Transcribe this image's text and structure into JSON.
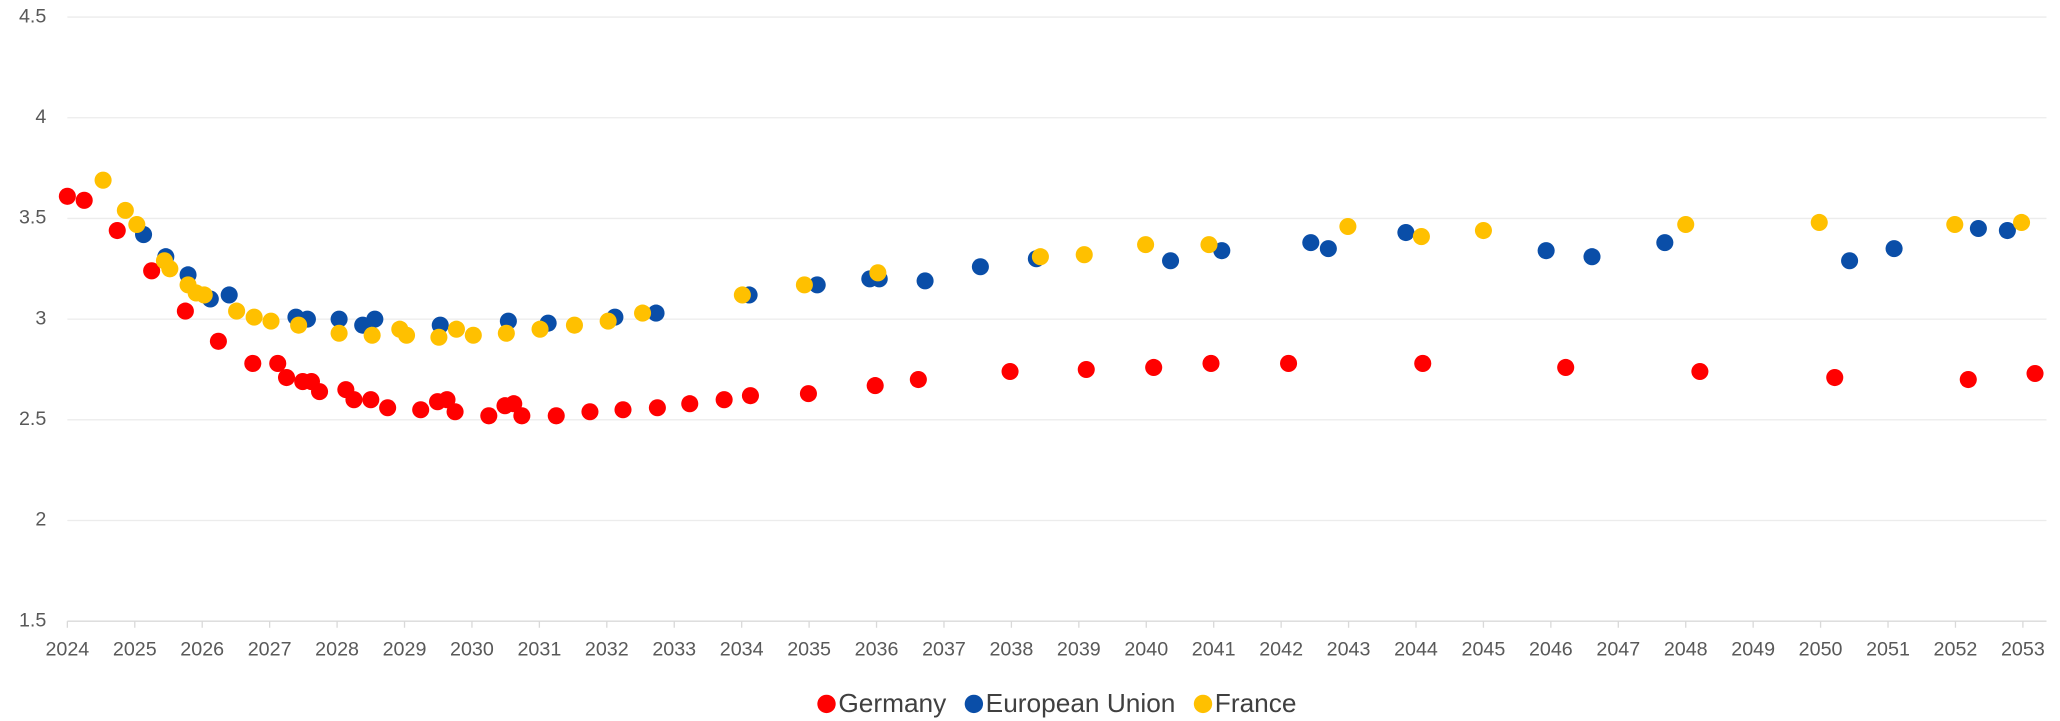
{
  "chart_data": {
    "type": "scatter",
    "xlim": [
      2024,
      2053.35
    ],
    "xticks": [
      2024,
      2025,
      2026,
      2027,
      2028,
      2029,
      2030,
      2031,
      2032,
      2033,
      2034,
      2035,
      2036,
      2037,
      2038,
      2039,
      2040,
      2041,
      2042,
      2043,
      2044,
      2045,
      2046,
      2047,
      2048,
      2049,
      2050,
      2051,
      2052,
      2053
    ],
    "ylim": [
      1.5,
      4.5
    ],
    "yticks": [
      1.5,
      2,
      2.5,
      3,
      3.5,
      4,
      4.5
    ],
    "grid": true,
    "legend": "bottom",
    "series": [
      {
        "name": "Germany",
        "color": "#ff0000",
        "x": [
          2024.0,
          2024.25,
          2024.74,
          2025.25,
          2025.75,
          2026.24,
          2026.75,
          2027.12,
          2027.25,
          2027.49,
          2027.62,
          2027.74,
          2028.13,
          2028.25,
          2028.5,
          2028.75,
          2029.24,
          2029.49,
          2029.63,
          2029.75,
          2030.25,
          2030.49,
          2030.62,
          2030.74,
          2031.25,
          2031.75,
          2032.24,
          2032.75,
          2033.23,
          2033.74,
          2034.13,
          2034.99,
          2035.98,
          2036.62,
          2037.98,
          2039.11,
          2040.11,
          2040.96,
          2042.11,
          2044.1,
          2046.22,
          2048.21,
          2050.21,
          2052.19,
          2053.18
        ],
        "values": [
          3.61,
          3.59,
          3.44,
          3.24,
          3.04,
          2.89,
          2.78,
          2.78,
          2.71,
          2.69,
          2.69,
          2.64,
          2.65,
          2.6,
          2.6,
          2.56,
          2.55,
          2.59,
          2.6,
          2.54,
          2.52,
          2.57,
          2.58,
          2.52,
          2.52,
          2.54,
          2.55,
          2.56,
          2.58,
          2.6,
          2.62,
          2.63,
          2.67,
          2.7,
          2.74,
          2.75,
          2.76,
          2.78,
          2.78,
          2.78,
          2.76,
          2.74,
          2.71,
          2.7,
          2.73
        ]
      },
      {
        "name": "European Union",
        "color": "#0a4ea8",
        "x": [
          2025.13,
          2025.46,
          2025.79,
          2026.12,
          2026.4,
          2027.39,
          2027.56,
          2028.03,
          2028.38,
          2028.56,
          2029.53,
          2030.54,
          2031.13,
          2032.12,
          2032.73,
          2034.11,
          2035.12,
          2035.9,
          2036.04,
          2036.72,
          2037.54,
          2038.37,
          2040.36,
          2041.12,
          2042.44,
          2042.7,
          2043.85,
          2045.93,
          2046.61,
          2047.69,
          2050.43,
          2051.09,
          2052.34,
          2052.77
        ],
        "values": [
          3.42,
          3.31,
          3.22,
          3.1,
          3.12,
          3.01,
          3.0,
          3.0,
          2.97,
          3.0,
          2.97,
          2.99,
          2.98,
          3.01,
          3.03,
          3.12,
          3.17,
          3.2,
          3.2,
          3.19,
          3.26,
          3.3,
          3.29,
          3.34,
          3.38,
          3.35,
          3.43,
          3.34,
          3.31,
          3.38,
          3.29,
          3.35,
          3.45,
          3.44
        ]
      },
      {
        "name": "France",
        "color": "#ffc000",
        "x": [
          2024.53,
          2024.86,
          2025.03,
          2025.44,
          2025.52,
          2025.79,
          2025.91,
          2026.03,
          2026.51,
          2026.77,
          2027.02,
          2027.43,
          2028.03,
          2028.52,
          2028.93,
          2029.03,
          2029.51,
          2029.77,
          2030.02,
          2030.51,
          2031.01,
          2031.52,
          2032.02,
          2032.53,
          2034.01,
          2034.93,
          2036.02,
          2038.43,
          2039.08,
          2039.99,
          2040.93,
          2042.99,
          2044.08,
          2045.0,
          2048.0,
          2049.98,
          2051.99,
          2052.98
        ],
        "values": [
          3.69,
          3.54,
          3.47,
          3.29,
          3.25,
          3.17,
          3.13,
          3.12,
          3.04,
          3.01,
          2.99,
          2.97,
          2.93,
          2.92,
          2.95,
          2.92,
          2.91,
          2.95,
          2.92,
          2.93,
          2.95,
          2.97,
          2.99,
          3.03,
          3.12,
          3.17,
          3.23,
          3.31,
          3.32,
          3.37,
          3.37,
          3.46,
          3.41,
          3.44,
          3.47,
          3.48,
          3.47,
          3.48
        ]
      }
    ]
  }
}
